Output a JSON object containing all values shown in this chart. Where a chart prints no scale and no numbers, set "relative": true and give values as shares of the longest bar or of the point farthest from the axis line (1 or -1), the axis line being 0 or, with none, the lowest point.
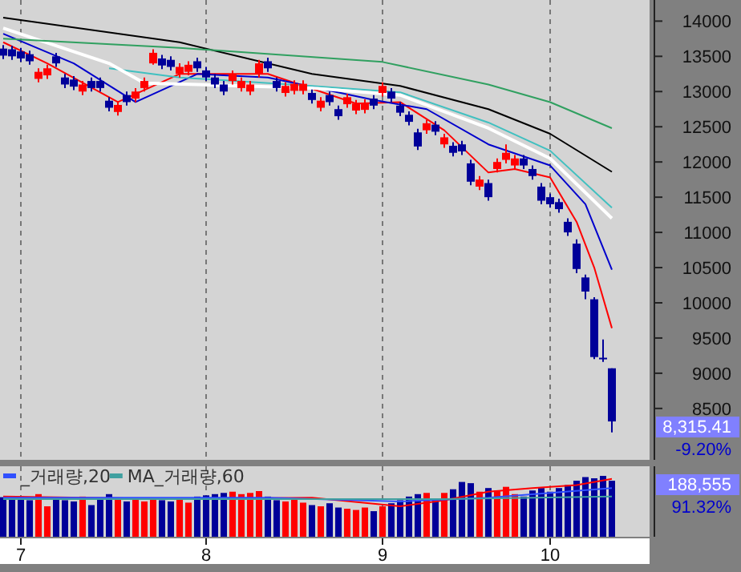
{
  "chart_data": [
    {
      "type": "candlestick",
      "categories": [
        null,
        null,
        "7",
        null,
        null,
        null,
        null,
        null,
        null,
        null,
        null,
        null,
        null,
        null,
        null,
        null,
        null,
        null,
        null,
        null,
        null,
        null,
        null,
        "8",
        null,
        null,
        null,
        null,
        null,
        null,
        null,
        null,
        null,
        null,
        null,
        null,
        null,
        null,
        null,
        null,
        null,
        null,
        null,
        "9",
        null,
        null,
        null,
        null,
        null,
        null,
        null,
        null,
        null,
        null,
        null,
        null,
        null,
        null,
        null,
        null,
        null,
        null,
        "10",
        null,
        null,
        null,
        null,
        null,
        null,
        null
      ],
      "ohlc": [
        [
          13610,
          13660,
          13460,
          13510
        ],
        [
          13600,
          13650,
          13450,
          13500
        ],
        [
          13570,
          13620,
          13420,
          13470
        ],
        [
          13530,
          13580,
          13380,
          13430
        ],
        [
          13180,
          13330,
          13130,
          13280
        ],
        [
          13230,
          13380,
          13180,
          13330
        ],
        [
          13500,
          13550,
          13350,
          13400
        ],
        [
          13200,
          13250,
          13050,
          13100
        ],
        [
          13170,
          13220,
          13020,
          13070
        ],
        [
          13000,
          13150,
          12950,
          13100
        ],
        [
          13150,
          13200,
          13000,
          13050
        ],
        [
          13150,
          13200,
          13000,
          13050
        ],
        [
          12870,
          12920,
          12720,
          12770
        ],
        [
          12710,
          12860,
          12660,
          12810
        ],
        [
          12950,
          13000,
          12800,
          12850
        ],
        [
          12900,
          13050,
          12850,
          13000
        ],
        [
          13050,
          13200,
          13000,
          13150
        ],
        [
          13400,
          13600,
          13380,
          13550
        ],
        [
          13470,
          13520,
          13320,
          13370
        ],
        [
          13450,
          13500,
          13300,
          13350
        ],
        [
          13250,
          13400,
          13200,
          13350
        ],
        [
          13280,
          13430,
          13230,
          13380
        ],
        [
          13430,
          13480,
          13280,
          13330
        ],
        [
          13300,
          13350,
          13150,
          13200
        ],
        [
          13200,
          13250,
          13050,
          13100
        ],
        [
          13100,
          13150,
          12950,
          13000
        ],
        [
          13150,
          13300,
          13100,
          13250
        ],
        [
          13050,
          13200,
          13000,
          13150
        ],
        [
          13000,
          13150,
          12950,
          13100
        ],
        [
          13250,
          13450,
          13200,
          13400
        ],
        [
          13430,
          13480,
          13280,
          13330
        ],
        [
          13150,
          13200,
          13000,
          13050
        ],
        [
          12980,
          13130,
          12930,
          13080
        ],
        [
          13010,
          13160,
          12960,
          13110
        ],
        [
          13010,
          13160,
          12960,
          13110
        ],
        [
          12980,
          13030,
          12830,
          12880
        ],
        [
          12770,
          12920,
          12720,
          12870
        ],
        [
          12950,
          13000,
          12800,
          12850
        ],
        [
          12750,
          12800,
          12600,
          12650
        ],
        [
          12820,
          12970,
          12770,
          12920
        ],
        [
          12730,
          12880,
          12680,
          12830
        ],
        [
          12740,
          12890,
          12690,
          12840
        ],
        [
          12900,
          12950,
          12750,
          12800
        ],
        [
          12980,
          13130,
          12930,
          13080
        ],
        [
          13000,
          13050,
          12850,
          12900
        ],
        [
          12800,
          12850,
          12650,
          12700
        ],
        [
          12670,
          12720,
          12520,
          12570
        ],
        [
          12420,
          12470,
          12170,
          12220
        ],
        [
          12450,
          12600,
          12400,
          12550
        ],
        [
          12530,
          12580,
          12380,
          12430
        ],
        [
          12250,
          12400,
          12200,
          12350
        ],
        [
          12230,
          12280,
          12080,
          12130
        ],
        [
          12250,
          12300,
          12100,
          12150
        ],
        [
          11980,
          12030,
          11670,
          11720
        ],
        [
          11650,
          11800,
          11600,
          11750
        ],
        [
          11700,
          11750,
          11450,
          11500
        ],
        [
          11900,
          12050,
          11850,
          12000
        ],
        [
          12030,
          12250,
          11980,
          12130
        ],
        [
          11950,
          12100,
          11900,
          12050
        ],
        [
          12050,
          12100,
          11900,
          11950
        ],
        [
          11900,
          11950,
          11750,
          11800
        ],
        [
          11650,
          11700,
          11400,
          11450
        ],
        [
          11500,
          11550,
          11350,
          11400
        ],
        [
          11430,
          11480,
          11280,
          11330
        ],
        [
          11150,
          11200,
          10950,
          11000
        ],
        [
          10840,
          10900,
          10420,
          10480
        ],
        [
          10360,
          10400,
          10050,
          10160
        ],
        [
          10050,
          10080,
          9200,
          9230
        ],
        [
          9220,
          9480,
          9160,
          9200
        ],
        [
          9070,
          9070,
          8160,
          8315.41
        ]
      ],
      "ylim": [
        7770,
        14300
      ],
      "yticks": [
        8500,
        9000,
        9500,
        10000,
        10500,
        11000,
        11500,
        12000,
        12500,
        13000,
        13500,
        14000
      ],
      "tick_labels": "y",
      "grid": "x",
      "series": [
        {
          "type": "line",
          "color": "#ff0000",
          "values": [
            13700,
            null,
            null,
            null,
            null,
            13400,
            null,
            null,
            null,
            null,
            null,
            null,
            null,
            12850,
            null,
            null,
            null,
            null,
            null,
            null,
            13250,
            null,
            null,
            null,
            null,
            null,
            null,
            null,
            null,
            null,
            13250,
            null,
            null,
            null,
            null,
            null,
            null,
            null,
            null,
            null,
            12830,
            null,
            null,
            null,
            null,
            12850,
            null,
            null,
            null,
            null,
            12450,
            null,
            null,
            null,
            null,
            11850,
            null,
            null,
            11900,
            null,
            null,
            null,
            11780,
            null,
            null,
            11150,
            null,
            10500,
            null,
            9640
          ]
        },
        {
          "type": "line",
          "color": "#0000cc",
          "values": [
            13820,
            null,
            null,
            null,
            null,
            null,
            null,
            null,
            13400,
            null,
            null,
            null,
            null,
            null,
            null,
            12850,
            null,
            null,
            null,
            null,
            null,
            null,
            13250,
            null,
            null,
            null,
            null,
            null,
            null,
            null,
            13200,
            null,
            null,
            null,
            null,
            null,
            null,
            null,
            null,
            null,
            null,
            null,
            12880,
            null,
            null,
            null,
            null,
            null,
            12750,
            null,
            null,
            null,
            null,
            null,
            null,
            12250,
            null,
            null,
            null,
            null,
            null,
            null,
            11950,
            null,
            null,
            null,
            11400,
            null,
            null,
            10470
          ]
        },
        {
          "type": "line",
          "color": "#40c0c0",
          "values": [
            null,
            null,
            null,
            null,
            null,
            null,
            null,
            null,
            null,
            null,
            null,
            null,
            13330,
            null,
            null,
            null,
            null,
            null,
            null,
            null,
            13200,
            null,
            null,
            null,
            null,
            null,
            null,
            null,
            null,
            null,
            null,
            null,
            null,
            null,
            null,
            13080,
            null,
            null,
            null,
            null,
            null,
            null,
            null,
            null,
            null,
            12990,
            null,
            null,
            null,
            null,
            null,
            null,
            null,
            null,
            null,
            12560,
            null,
            null,
            null,
            null,
            null,
            null,
            12160,
            null,
            null,
            null,
            null,
            null,
            null,
            11350
          ]
        },
        {
          "type": "line",
          "color": "#ffffff",
          "values": [
            13900,
            null,
            null,
            null,
            null,
            null,
            null,
            null,
            null,
            null,
            null,
            null,
            13400,
            null,
            null,
            null,
            13120,
            null,
            null,
            null,
            null,
            null,
            13100,
            null,
            null,
            null,
            null,
            null,
            null,
            null,
            null,
            null,
            null,
            null,
            null,
            13050,
            null,
            null,
            null,
            null,
            null,
            null,
            null,
            null,
            null,
            12950,
            null,
            null,
            null,
            null,
            null,
            null,
            null,
            null,
            null,
            12480,
            null,
            null,
            null,
            null,
            null,
            null,
            12050,
            null,
            null,
            null,
            null,
            null,
            null,
            11200
          ]
        },
        {
          "type": "line",
          "color": "#000000",
          "values": [
            14050,
            null,
            null,
            null,
            null,
            null,
            null,
            null,
            null,
            null,
            null,
            null,
            null,
            null,
            null,
            null,
            null,
            null,
            null,
            null,
            13700,
            null,
            null,
            null,
            null,
            null,
            null,
            null,
            null,
            null,
            null,
            null,
            null,
            null,
            null,
            13250,
            null,
            null,
            null,
            null,
            null,
            null,
            null,
            null,
            null,
            13080,
            null,
            null,
            null,
            null,
            null,
            null,
            null,
            null,
            null,
            12750,
            null,
            null,
            null,
            null,
            null,
            null,
            12400,
            null,
            null,
            null,
            null,
            null,
            null,
            11860
          ]
        },
        {
          "type": "line",
          "color": "#30a060",
          "values": [
            13750,
            null,
            null,
            null,
            null,
            null,
            null,
            null,
            null,
            null,
            null,
            null,
            null,
            null,
            null,
            null,
            null,
            null,
            null,
            null,
            13620,
            null,
            null,
            null,
            null,
            null,
            null,
            null,
            null,
            null,
            null,
            null,
            null,
            null,
            null,
            null,
            null,
            null,
            null,
            null,
            null,
            null,
            null,
            13420,
            null,
            null,
            null,
            null,
            null,
            null,
            null,
            null,
            null,
            null,
            null,
            13100,
            null,
            null,
            null,
            null,
            null,
            null,
            12850,
            null,
            null,
            null,
            null,
            null,
            null,
            12480
          ]
        }
      ],
      "annotations": [
        "8,315.41",
        "-9.20%"
      ]
    },
    {
      "type": "bar",
      "relative": true,
      "categories": [
        null,
        null,
        "7",
        null,
        null,
        null,
        null,
        null,
        null,
        null,
        null,
        null,
        null,
        null,
        null,
        null,
        null,
        null,
        null,
        null,
        null,
        null,
        null,
        "8",
        null,
        null,
        null,
        null,
        null,
        null,
        null,
        null,
        null,
        null,
        null,
        null,
        null,
        null,
        null,
        null,
        null,
        null,
        null,
        "9",
        null,
        null,
        null,
        null,
        null,
        null,
        null,
        null,
        null,
        null,
        null,
        null,
        null,
        null,
        null,
        null,
        null,
        null,
        "10",
        null,
        null,
        null,
        null,
        null,
        null,
        null
      ],
      "values": [
        0.65,
        0.62,
        0.66,
        0.6,
        0.7,
        0.5,
        0.64,
        0.6,
        0.58,
        0.66,
        0.52,
        0.64,
        0.7,
        0.62,
        0.58,
        0.62,
        0.58,
        0.62,
        0.6,
        0.58,
        0.62,
        0.56,
        0.66,
        0.68,
        0.7,
        0.72,
        0.74,
        0.7,
        0.72,
        0.75,
        0.66,
        0.6,
        0.58,
        0.62,
        0.56,
        0.52,
        0.5,
        0.55,
        0.48,
        0.46,
        0.44,
        0.48,
        0.42,
        0.5,
        0.55,
        0.6,
        0.66,
        0.7,
        0.72,
        0.6,
        0.72,
        0.78,
        0.9,
        0.88,
        0.74,
        0.8,
        0.76,
        0.82,
        0.7,
        0.66,
        0.76,
        0.8,
        0.74,
        0.8,
        0.85,
        0.92,
        0.98,
        0.96,
        1,
        0.92
      ],
      "colors": [
        "#000099",
        "#000099",
        "#000099",
        "#000099",
        "#ff0000",
        "#ff0000",
        "#000099",
        "#000099",
        "#000099",
        "#ff0000",
        "#000099",
        "#000099",
        "#000099",
        "#ff0000",
        "#000099",
        "#ff0000",
        "#ff0000",
        "#ff0000",
        "#000099",
        "#000099",
        "#ff0000",
        "#ff0000",
        "#000099",
        "#000099",
        "#000099",
        "#000099",
        "#ff0000",
        "#ff0000",
        "#ff0000",
        "#ff0000",
        "#000099",
        "#000099",
        "#ff0000",
        "#ff0000",
        "#ff0000",
        "#000099",
        "#ff0000",
        "#000099",
        "#000099",
        "#ff0000",
        "#ff0000",
        "#ff0000",
        "#000099",
        "#ff0000",
        "#000099",
        "#000099",
        "#000099",
        "#000099",
        "#ff0000",
        "#000099",
        "#ff0000",
        "#000099",
        "#000099",
        "#000099",
        "#ff0000",
        "#000099",
        "#ff0000",
        "#ff0000",
        "#ff0000",
        "#000099",
        "#000099",
        "#000099",
        "#000099",
        "#000099",
        "#000099",
        "#000099",
        "#000099",
        "#000099",
        "#000099",
        "#000099"
      ],
      "tick_labels": "x",
      "grid": "x",
      "legend": "top left",
      "series": [
        {
          "type": "line",
          "color": "#ff0000",
          "values": [
            0.66,
            null,
            null,
            null,
            null,
            null,
            null,
            null,
            null,
            null,
            null,
            null,
            null,
            null,
            null,
            null,
            null,
            null,
            null,
            null,
            0.62,
            null,
            null,
            null,
            null,
            null,
            null,
            null,
            null,
            null,
            null,
            null,
            null,
            null,
            null,
            0.64,
            null,
            null,
            null,
            null,
            null,
            null,
            null,
            null,
            null,
            0.5,
            null,
            null,
            null,
            null,
            0.6,
            null,
            null,
            null,
            null,
            0.74,
            null,
            null,
            null,
            null,
            0.8,
            null,
            null,
            null,
            null,
            0.85,
            null,
            null,
            null,
            0.95
          ]
        },
        {
          "type": "line",
          "name": "_거래량,20",
          "color": "#3050ff",
          "values": [
            0.64,
            null,
            null,
            null,
            null,
            null,
            null,
            null,
            null,
            null,
            null,
            null,
            null,
            null,
            null,
            null,
            null,
            null,
            null,
            null,
            null,
            null,
            null,
            null,
            null,
            null,
            null,
            null,
            null,
            null,
            0.64,
            null,
            null,
            null,
            null,
            null,
            null,
            null,
            null,
            null,
            null,
            null,
            null,
            null,
            null,
            0.58,
            null,
            null,
            null,
            null,
            null,
            null,
            null,
            null,
            null,
            0.64,
            null,
            null,
            null,
            null,
            null,
            null,
            0.72,
            null,
            null,
            null,
            null,
            null,
            null,
            0.8
          ]
        },
        {
          "type": "line",
          "name": "MA_거래량,60",
          "color": "#40a0a0",
          "values": [
            0.62,
            null,
            null,
            null,
            null,
            null,
            null,
            null,
            null,
            null,
            null,
            null,
            null,
            null,
            null,
            null,
            null,
            null,
            null,
            null,
            null,
            null,
            null,
            null,
            null,
            null,
            null,
            null,
            null,
            null,
            0.62,
            null,
            null,
            null,
            null,
            null,
            null,
            null,
            null,
            null,
            null,
            null,
            null,
            null,
            null,
            null,
            null,
            null,
            null,
            null,
            0.62,
            null,
            null,
            null,
            null,
            null,
            null,
            null,
            null,
            null,
            null,
            null,
            null,
            null,
            null,
            null,
            null,
            null,
            null,
            0.66
          ]
        }
      ],
      "annotations": [
        "188,555",
        "91.32%"
      ]
    }
  ]
}
